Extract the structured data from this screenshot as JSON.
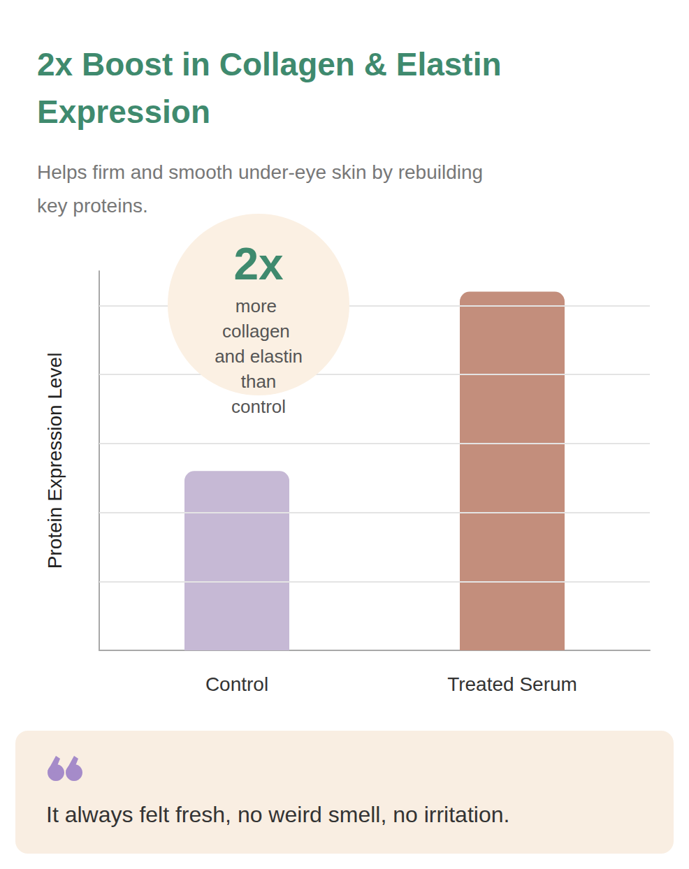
{
  "chart_data": {
    "type": "bar",
    "title": "2x Boost in Collagen & Elastin Expression",
    "subtitle": "Helps firm and smooth under-eye skin by rebuilding key proteins.",
    "y_label": "Protein Expression Level",
    "categories": [
      "Control",
      "Treated Serum"
    ],
    "values": [
      2.6,
      5.2
    ],
    "colors": [
      "#c6b9d5",
      "#c38e7c"
    ],
    "ylim": [
      0,
      5.5
    ],
    "yticks": [
      0,
      1,
      2,
      3,
      4,
      5
    ],
    "grid": true,
    "tick_labels": "x",
    "annotation": {
      "headline": "2x",
      "text": "more collagen and elastin than control"
    },
    "quote": "It always felt fresh, no weird smell, no irritation."
  }
}
